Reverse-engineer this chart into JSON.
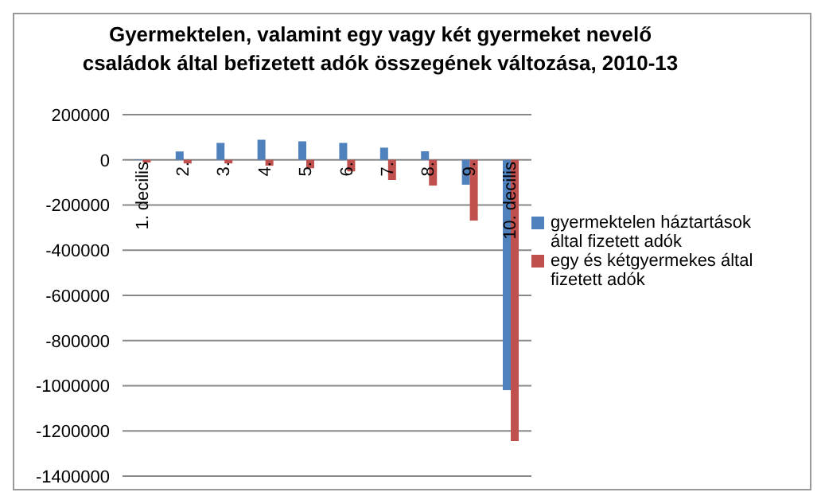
{
  "chart_data": {
    "type": "bar",
    "title": "Gyermektelen, valamint egy vagy két gyermeket nevelő családok által befizetett adók összegének változása, 2010-13",
    "categories": [
      "1. decilis",
      "2.",
      "3.",
      "4.",
      "5.",
      "6.",
      "7.",
      "8.",
      "9.",
      "10. decilis"
    ],
    "series": [
      {
        "name": "gyermektelen háztartások által fizetett adók",
        "color": "#4f81bd",
        "values": [
          2000,
          37000,
          75000,
          89000,
          82000,
          75000,
          54000,
          38000,
          -110000,
          -1019000
        ]
      },
      {
        "name": "egy és kétgyermekes által fizetett adók",
        "color": "#c0504d",
        "values": [
          -12000,
          -16000,
          -16000,
          -26000,
          -37000,
          -51000,
          -89000,
          -114000,
          -269000,
          -1245000
        ]
      }
    ],
    "ylim": [
      -1400000,
      200000
    ],
    "yticks": [
      -1400000,
      -1200000,
      -1000000,
      -800000,
      -600000,
      -400000,
      -200000,
      0,
      200000
    ],
    "grid": "y",
    "legend": "right"
  }
}
